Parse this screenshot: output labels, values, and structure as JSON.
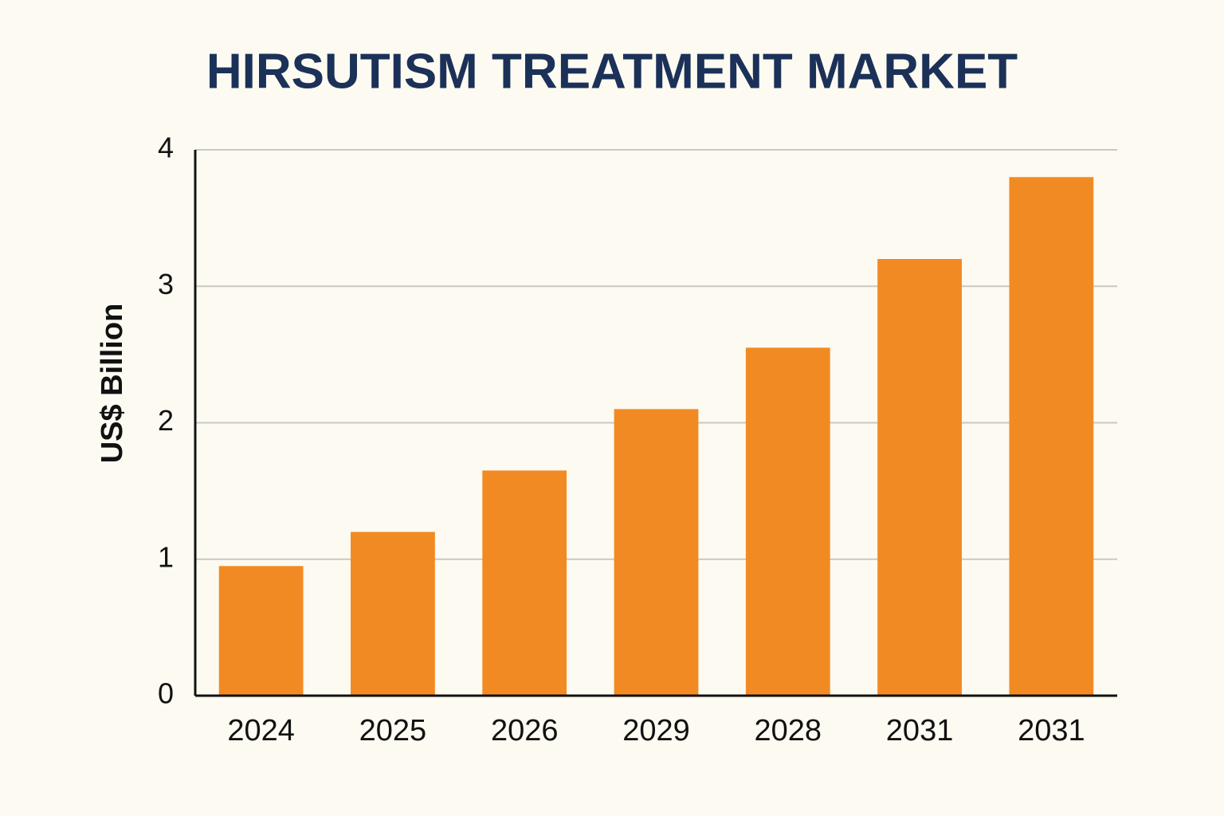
{
  "chart_data": {
    "type": "bar",
    "title": "HIRSUTISM TREATMENT MARKET",
    "y_label": "US$ Billion",
    "categories": [
      "2024",
      "2025",
      "2026",
      "2029",
      "2028",
      "2031",
      "2031"
    ],
    "values": [
      0.95,
      1.2,
      1.65,
      2.1,
      2.55,
      3.2,
      3.8
    ],
    "color": "#f28a24",
    "ylim": [
      0,
      4
    ],
    "yticks": [
      0,
      1,
      2,
      3,
      4
    ],
    "grid": true
  }
}
